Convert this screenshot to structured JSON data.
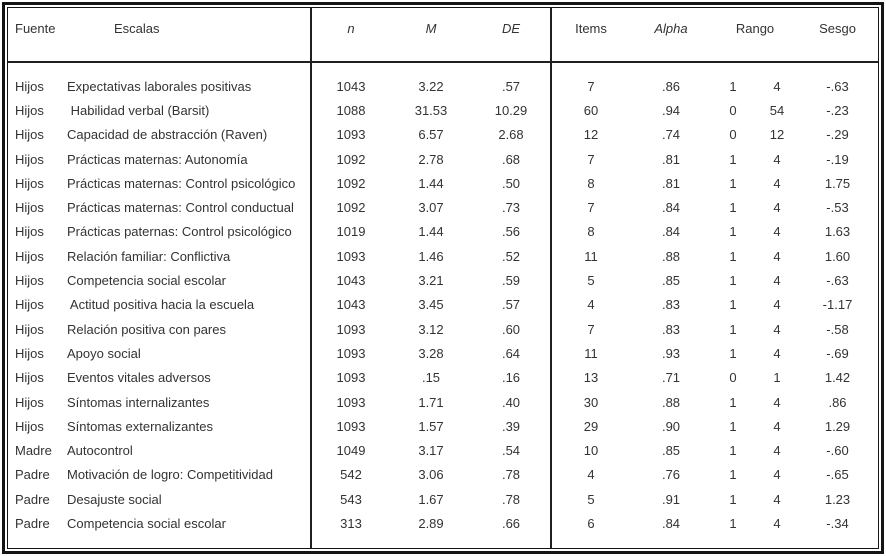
{
  "table": {
    "headers": {
      "fuente": "Fuente",
      "escalas": "Escalas",
      "n": "n",
      "m": "M",
      "de": "DE",
      "items": "Items",
      "alpha": "Alpha",
      "rango": "Rango",
      "sesgo": "Sesgo"
    },
    "rows": [
      {
        "fuente": "Hijos",
        "escala": "Expectativas laborales positivas",
        "n": "1043",
        "m": "3.22",
        "de": ".57",
        "items": "7",
        "alpha": ".86",
        "rango_min": "1",
        "rango_max": "4",
        "sesgo": "-.63"
      },
      {
        "fuente": "Hijos",
        "escala": " Habilidad verbal (Barsit)",
        "n": "1088",
        "m": "31.53",
        "de": "10.29",
        "items": "60",
        "alpha": ".94",
        "rango_min": "0",
        "rango_max": "54",
        "sesgo": "-.23"
      },
      {
        "fuente": "Hijos",
        "escala": "Capacidad de abstracción (Raven)",
        "n": "1093",
        "m": "6.57",
        "de": "2.68",
        "items": "12",
        "alpha": ".74",
        "rango_min": "0",
        "rango_max": "12",
        "sesgo": "-.29"
      },
      {
        "fuente": "Hijos",
        "escala": "Prácticas maternas: Autonomía",
        "n": "1092",
        "m": "2.78",
        "de": ".68",
        "items": "7",
        "alpha": ".81",
        "rango_min": "1",
        "rango_max": "4",
        "sesgo": "-.19"
      },
      {
        "fuente": "Hijos",
        "escala": "Prácticas maternas: Control psicológico",
        "n": "1092",
        "m": "1.44",
        "de": ".50",
        "items": "8",
        "alpha": ".81",
        "rango_min": "1",
        "rango_max": "4",
        "sesgo": "1.75"
      },
      {
        "fuente": "Hijos",
        "escala": "Prácticas maternas: Control conductual",
        "n": "1092",
        "m": "3.07",
        "de": ".73",
        "items": "7",
        "alpha": ".84",
        "rango_min": "1",
        "rango_max": "4",
        "sesgo": "-.53"
      },
      {
        "fuente": "Hijos",
        "escala": "Prácticas paternas: Control psicológico",
        "n": "1019",
        "m": "1.44",
        "de": ".56",
        "items": "8",
        "alpha": ".84",
        "rango_min": "1",
        "rango_max": "4",
        "sesgo": "1.63"
      },
      {
        "fuente": "Hijos",
        "escala": "Relación familiar: Conflictiva",
        "n": "1093",
        "m": "1.46",
        "de": ".52",
        "items": "11",
        "alpha": ".88",
        "rango_min": "1",
        "rango_max": "4",
        "sesgo": "1.60"
      },
      {
        "fuente": "Hijos",
        "escala": "Competencia social escolar",
        "n": "1043",
        "m": "3.21",
        "de": ".59",
        "items": "5",
        "alpha": ".85",
        "rango_min": "1",
        "rango_max": "4",
        "sesgo": "-.63"
      },
      {
        "fuente": "Hijos",
        "escala": " Actitud positiva hacia la escuela",
        "n": "1043",
        "m": "3.45",
        "de": ".57",
        "items": "4",
        "alpha": ".83",
        "rango_min": "1",
        "rango_max": "4",
        "sesgo": "-1.17"
      },
      {
        "fuente": "Hijos",
        "escala": "Relación positiva con pares",
        "n": "1093",
        "m": "3.12",
        "de": ".60",
        "items": "7",
        "alpha": ".83",
        "rango_min": "1",
        "rango_max": "4",
        "sesgo": "-.58"
      },
      {
        "fuente": "Hijos",
        "escala": "Apoyo social",
        "n": "1093",
        "m": "3.28",
        "de": ".64",
        "items": "11",
        "alpha": ".93",
        "rango_min": "1",
        "rango_max": "4",
        "sesgo": "-.69"
      },
      {
        "fuente": "Hijos",
        "escala": "Eventos vitales adversos",
        "n": "1093",
        "m": ".15",
        "de": ".16",
        "items": "13",
        "alpha": ".71",
        "rango_min": "0",
        "rango_max": "1",
        "sesgo": "1.42"
      },
      {
        "fuente": "Hijos",
        "escala": "Síntomas internalizantes",
        "n": "1093",
        "m": "1.71",
        "de": ".40",
        "items": "30",
        "alpha": ".88",
        "rango_min": "1",
        "rango_max": "4",
        "sesgo": ".86"
      },
      {
        "fuente": "Hijos",
        "escala": "Síntomas externalizantes",
        "n": "1093",
        "m": "1.57",
        "de": ".39",
        "items": "29",
        "alpha": ".90",
        "rango_min": "1",
        "rango_max": "4",
        "sesgo": "1.29"
      },
      {
        "fuente": "Madre",
        "escala": "Autocontrol",
        "n": "1049",
        "m": "3.17",
        "de": ".54",
        "items": "10",
        "alpha": ".85",
        "rango_min": "1",
        "rango_max": "4",
        "sesgo": "-.60"
      },
      {
        "fuente": "Padre",
        "escala": "Motivación de logro: Competitividad",
        "n": "542",
        "m": "3.06",
        "de": ".78",
        "items": "4",
        "alpha": ".76",
        "rango_min": "1",
        "rango_max": "4",
        "sesgo": "-.65"
      },
      {
        "fuente": "Padre",
        "escala": "Desajuste social",
        "n": "543",
        "m": "1.67",
        "de": ".78",
        "items": "5",
        "alpha": ".91",
        "rango_min": "1",
        "rango_max": "4",
        "sesgo": "1.23"
      },
      {
        "fuente": "Padre",
        "escala": "Competencia social escolar",
        "n": "313",
        "m": "2.89",
        "de": ".66",
        "items": "6",
        "alpha": ".84",
        "rango_min": "1",
        "rango_max": "4",
        "sesgo": "-.34"
      }
    ]
  },
  "colors": {
    "background": "#ffffff",
    "border": "#141414",
    "text": "#333333"
  }
}
